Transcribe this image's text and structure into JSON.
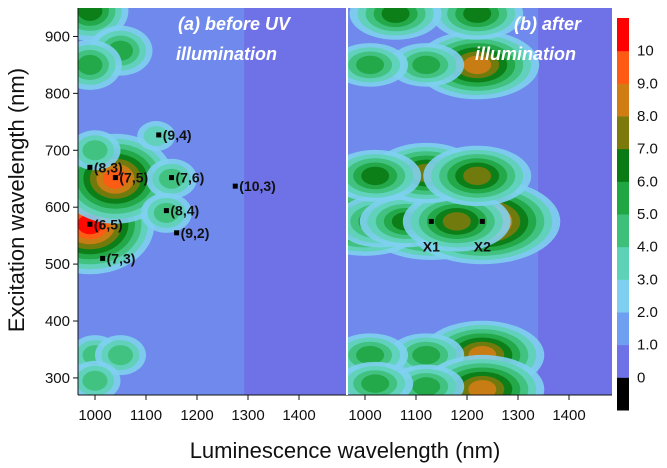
{
  "chart_data": {
    "type": "heatmap",
    "xlabel": "Luminescence wavelength (nm)",
    "ylabel": "Excitation wavelength (nm)",
    "ylim": [
      270,
      950
    ],
    "y_ticks": [
      "300",
      "400",
      "500",
      "600",
      "700",
      "800",
      "900"
    ],
    "panels": [
      {
        "title": [
          "(a)  before UV",
          "illumination"
        ],
        "x_ticks": [
          "1000",
          "1100",
          "1200",
          "1300",
          "1400"
        ],
        "spots": [
          {
            "x": 990,
            "y": 570,
            "z": 10
          },
          {
            "x": 1040,
            "y": 650,
            "z": 9
          },
          {
            "x": 990,
            "y": 945,
            "z": 6
          },
          {
            "x": 1050,
            "y": 875,
            "z": 5
          },
          {
            "x": 990,
            "y": 850,
            "z": 4.5
          },
          {
            "x": 1000,
            "y": 700,
            "z": 4
          },
          {
            "x": 1000,
            "y": 340,
            "z": 4
          },
          {
            "x": 1050,
            "y": 340,
            "z": 3.5
          },
          {
            "x": 1000,
            "y": 295,
            "z": 3.5
          },
          {
            "x": 1150,
            "y": 650,
            "z": 4
          },
          {
            "x": 1140,
            "y": 590,
            "z": 4
          },
          {
            "x": 1120,
            "y": 725,
            "z": 3
          }
        ],
        "annotations": [
          {
            "text": "(8,3)",
            "x": 990,
            "y": 670
          },
          {
            "text": "(7,5)",
            "x": 1040,
            "y": 652
          },
          {
            "text": "(7,6)",
            "x": 1150,
            "y": 652
          },
          {
            "text": "(9,4)",
            "x": 1125,
            "y": 727
          },
          {
            "text": "(10,3)",
            "x": 1275,
            "y": 637
          },
          {
            "text": "(8,4)",
            "x": 1140,
            "y": 594
          },
          {
            "text": "(9,2)",
            "x": 1160,
            "y": 555
          },
          {
            "text": "(6,5)",
            "x": 990,
            "y": 570
          },
          {
            "text": "(7,3)",
            "x": 1015,
            "y": 510
          }
        ]
      },
      {
        "title": [
          "(b) after",
          "illumination"
        ],
        "x_ticks": [
          "1000",
          "1100",
          "1200",
          "1300",
          "1400"
        ],
        "spots": [
          {
            "x": 1130,
            "y": 575,
            "z": 8.5
          },
          {
            "x": 1230,
            "y": 575,
            "z": 10
          },
          {
            "x": 1000,
            "y": 575,
            "z": 8
          },
          {
            "x": 1030,
            "y": 575,
            "z": 6
          },
          {
            "x": 1080,
            "y": 575,
            "z": 6
          },
          {
            "x": 1180,
            "y": 575,
            "z": 7
          },
          {
            "x": 1120,
            "y": 660,
            "z": 7
          },
          {
            "x": 1220,
            "y": 655,
            "z": 7
          },
          {
            "x": 1020,
            "y": 655,
            "z": 5.5
          },
          {
            "x": 1220,
            "y": 850,
            "z": 7.5
          },
          {
            "x": 1120,
            "y": 850,
            "z": 5
          },
          {
            "x": 1010,
            "y": 850,
            "z": 5
          },
          {
            "x": 1220,
            "y": 940,
            "z": 6
          },
          {
            "x": 1060,
            "y": 940,
            "z": 5.5
          },
          {
            "x": 1230,
            "y": 340,
            "z": 7.5
          },
          {
            "x": 1120,
            "y": 340,
            "z": 5
          },
          {
            "x": 1010,
            "y": 340,
            "z": 5
          },
          {
            "x": 1230,
            "y": 280,
            "z": 7.5
          },
          {
            "x": 1120,
            "y": 285,
            "z": 5
          },
          {
            "x": 1020,
            "y": 290,
            "z": 5
          }
        ],
        "annotations": [
          {
            "text": "X1",
            "x": 1130,
            "y": 575
          },
          {
            "text": "X2",
            "x": 1230,
            "y": 575
          }
        ]
      }
    ],
    "colorbar": {
      "ticks": [
        "0",
        "1.0",
        "2.0",
        "3.0",
        "4.0",
        "5.0",
        "6.0",
        "7.0",
        "8.0",
        "9.0",
        "10"
      ],
      "colors": [
        "#000000",
        "#6f72e6",
        "#6f9ff0",
        "#7fd0f0",
        "#5ed2b6",
        "#3ec07a",
        "#20a642",
        "#0a7a14",
        "#7c7a0c",
        "#d07d14",
        "#ff5a14",
        "#ff0000"
      ]
    },
    "colors": {
      "background": "#6f72e6",
      "level1": "#6f9ff0",
      "level2": "#7fd0f0",
      "level3": "#5ed2b6",
      "level4": "#3ec07a",
      "level5": "#20a642",
      "level6": "#0a7a14",
      "level7": "#7c7a0c",
      "level8": "#d07d14",
      "level9": "#ff5a14",
      "level10": "#ff0000"
    }
  }
}
